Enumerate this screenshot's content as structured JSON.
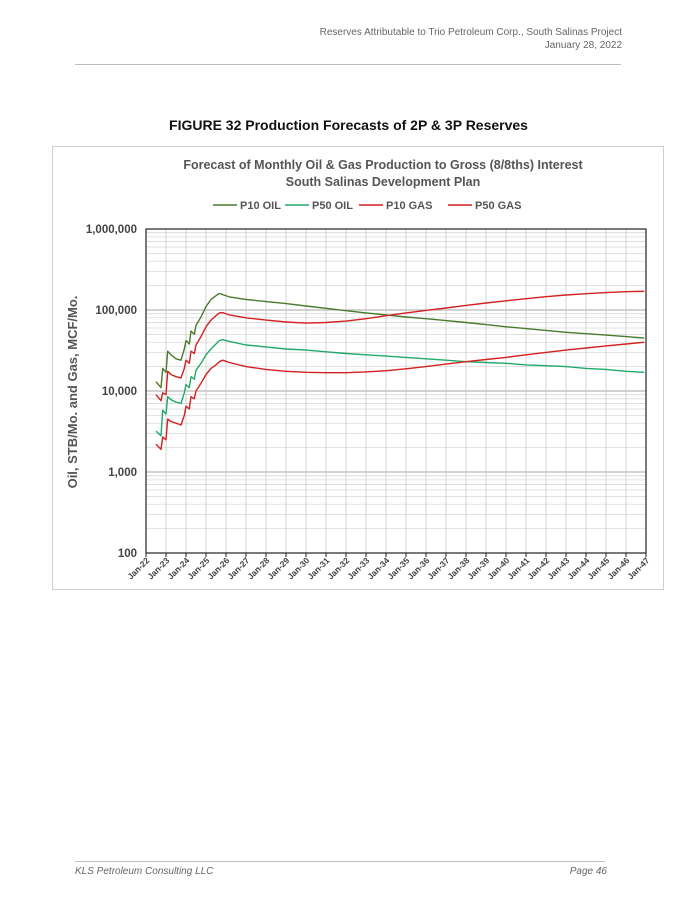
{
  "header": {
    "line1": "Reserves Attributable to Trio Petroleum Corp., South Salinas Project",
    "line2": "January 28, 2022"
  },
  "figure_title": "FIGURE 32 Production Forecasts of 2P & 3P Reserves",
  "footer": {
    "left": "KLS Petroleum Consulting LLC",
    "right": "Page 46"
  },
  "chart_data": {
    "type": "line",
    "title": "Forecast of Monthly Oil & Gas Production to Gross (8/8ths) Interest",
    "subtitle": "South Salinas Development Plan",
    "xlabel": "",
    "ylabel": "Oil, STB/Mo. and Gas, MCF/Mo.",
    "y_scale": "log",
    "ylim": [
      100,
      1000000
    ],
    "y_ticks": [
      100,
      1000,
      10000,
      100000,
      1000000
    ],
    "y_tick_labels": [
      "100",
      "1,000",
      "10,000",
      "100,000",
      "1,000,000"
    ],
    "x_ticks": [
      "Jan-22",
      "Jan-23",
      "Jan-24",
      "Jan-25",
      "Jan-26",
      "Jan-27",
      "Jan-28",
      "Jan-29",
      "Jan-30",
      "Jan-31",
      "Jan-32",
      "Jan-33",
      "Jan-34",
      "Jan-35",
      "Jan-36",
      "Jan-37",
      "Jan-38",
      "Jan-39",
      "Jan-40",
      "Jan-41",
      "Jan-42",
      "Jan-43",
      "Jan-44",
      "Jan-45",
      "Jan-46",
      "Jan-47"
    ],
    "xlim": [
      "2022-01",
      "2047-01"
    ],
    "grid": true,
    "legend_position": "top",
    "series": [
      {
        "name": "P10 OIL",
        "color": "#4a7a2c",
        "x": [
          "2022-07",
          "2022-10",
          "2022-11",
          "2023-01",
          "2023-02",
          "2023-04",
          "2023-07",
          "2023-10",
          "2023-12",
          "2024-01",
          "2024-03",
          "2024-04",
          "2024-06",
          "2024-07",
          "2024-10",
          "2025-01",
          "2025-04",
          "2025-07",
          "2025-09",
          "2025-11",
          "2026-03",
          "2027-01",
          "2028-01",
          "2029-01",
          "2030-01",
          "2031-01",
          "2032-01",
          "2033-01",
          "2034-01",
          "2035-01",
          "2036-01",
          "2037-01",
          "2038-01",
          "2039-01",
          "2040-01",
          "2041-01",
          "2042-01",
          "2043-01",
          "2044-01",
          "2045-01",
          "2046-01",
          "2046-12"
        ],
        "values": [
          13000,
          11000,
          19000,
          17000,
          31000,
          28000,
          25000,
          24000,
          33000,
          42000,
          38000,
          55000,
          50000,
          65000,
          82000,
          110000,
          135000,
          150000,
          160000,
          155000,
          145000,
          135000,
          127000,
          120000,
          112000,
          105000,
          98000,
          92000,
          87000,
          82000,
          78000,
          74000,
          70000,
          66000,
          62000,
          59000,
          56000,
          53000,
          51000,
          49000,
          47000,
          45000
        ]
      },
      {
        "name": "P50 OIL",
        "color": "#22a86a",
        "x": [
          "2022-07",
          "2022-10",
          "2022-11",
          "2023-01",
          "2023-02",
          "2023-04",
          "2023-07",
          "2023-10",
          "2023-12",
          "2024-01",
          "2024-03",
          "2024-04",
          "2024-06",
          "2024-07",
          "2024-10",
          "2025-01",
          "2025-04",
          "2025-07",
          "2025-09",
          "2025-11",
          "2026-03",
          "2027-01",
          "2028-01",
          "2029-01",
          "2030-01",
          "2031-01",
          "2032-01",
          "2033-01",
          "2034-01",
          "2035-01",
          "2036-01",
          "2037-01",
          "2038-01",
          "2039-01",
          "2040-01",
          "2041-01",
          "2042-01",
          "2043-01",
          "2044-01",
          "2045-01",
          "2046-01",
          "2046-12"
        ],
        "values": [
          3200,
          2800,
          5800,
          5200,
          8500,
          7800,
          7300,
          7000,
          9500,
          12000,
          11000,
          15000,
          14000,
          18000,
          22000,
          28000,
          33000,
          38000,
          42000,
          43000,
          41000,
          37000,
          35000,
          33000,
          32000,
          30500,
          29000,
          28000,
          27000,
          26000,
          25000,
          24000,
          23000,
          22500,
          22000,
          21000,
          20500,
          20000,
          19000,
          18500,
          17500,
          17000
        ]
      },
      {
        "name": "P10 GAS",
        "color": "#d42020",
        "x": [
          "2022-07",
          "2022-10",
          "2022-11",
          "2023-01",
          "2023-02",
          "2023-04",
          "2023-07",
          "2023-10",
          "2023-12",
          "2024-01",
          "2024-03",
          "2024-04",
          "2024-06",
          "2024-07",
          "2024-10",
          "2025-01",
          "2025-04",
          "2025-07",
          "2025-09",
          "2025-11",
          "2026-03",
          "2027-01",
          "2028-01",
          "2029-01",
          "2030-01",
          "2031-01",
          "2032-01",
          "2033-01",
          "2034-01",
          "2035-01",
          "2036-01",
          "2037-01",
          "2038-01",
          "2039-01",
          "2040-01",
          "2041-01",
          "2042-01",
          "2043-01",
          "2044-01",
          "2045-01",
          "2046-01",
          "2046-12"
        ],
        "values": [
          9000,
          7600,
          9500,
          9000,
          17500,
          16000,
          15000,
          14500,
          19000,
          24000,
          22000,
          31000,
          29000,
          37000,
          47000,
          62000,
          75000,
          85000,
          92000,
          93000,
          87000,
          80000,
          75000,
          71000,
          69000,
          70000,
          73000,
          78000,
          85000,
          92000,
          99000,
          106000,
          114000,
          122000,
          130000,
          138000,
          146000,
          153000,
          159000,
          164000,
          168000,
          170000
        ]
      },
      {
        "name": "P50 GAS",
        "color": "#d42020",
        "x": [
          "2022-07",
          "2022-10",
          "2022-11",
          "2023-01",
          "2023-02",
          "2023-04",
          "2023-07",
          "2023-10",
          "2023-12",
          "2024-01",
          "2024-03",
          "2024-04",
          "2024-06",
          "2024-07",
          "2024-10",
          "2025-01",
          "2025-04",
          "2025-07",
          "2025-09",
          "2025-11",
          "2026-03",
          "2027-01",
          "2028-01",
          "2029-01",
          "2030-01",
          "2031-01",
          "2032-01",
          "2033-01",
          "2034-01",
          "2035-01",
          "2036-01",
          "2037-01",
          "2038-01",
          "2039-01",
          "2040-01",
          "2041-01",
          "2042-01",
          "2043-01",
          "2044-01",
          "2045-01",
          "2046-01",
          "2046-12"
        ],
        "values": [
          2200,
          1900,
          2700,
          2500,
          4500,
          4200,
          4000,
          3800,
          5000,
          6500,
          6000,
          8500,
          8000,
          10000,
          12500,
          16000,
          19000,
          21000,
          23000,
          24000,
          22500,
          20000,
          18500,
          17500,
          17000,
          16800,
          16800,
          17200,
          17800,
          18800,
          20000,
          21500,
          23000,
          24500,
          26000,
          28000,
          30000,
          32000,
          34000,
          36000,
          38000,
          40000
        ]
      }
    ]
  }
}
